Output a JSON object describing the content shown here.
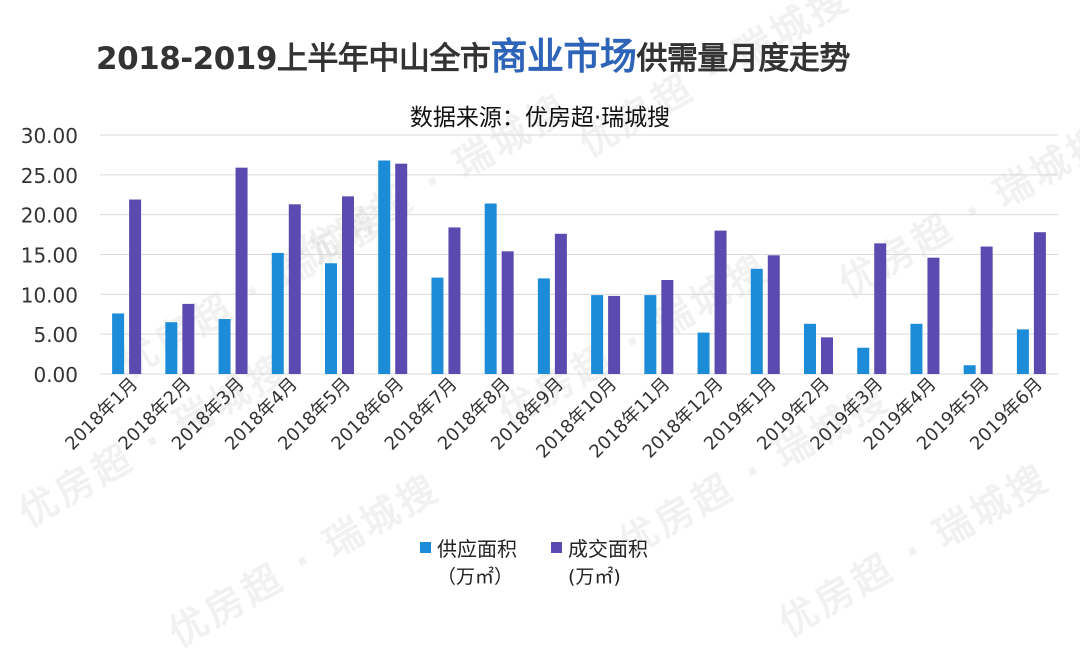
{
  "title": {
    "prefix": "2018-2019上半年中山全市",
    "highlight": "商业市场",
    "suffix": "供需量月度走势"
  },
  "subtitle": "数据来源：优房超·瑞城搜",
  "watermark_text": "优房超 · 瑞城搜",
  "chart_data": {
    "type": "bar",
    "categories": [
      "2018年1月",
      "2018年2月",
      "2018年3月",
      "2018年4月",
      "2018年5月",
      "2018年6月",
      "2018年7月",
      "2018年8月",
      "2018年9月",
      "2018年10月",
      "2018年11月",
      "2018年12月",
      "2019年1月",
      "2019年2月",
      "2019年3月",
      "2019年4月",
      "2019年5月",
      "2019年6月"
    ],
    "series": [
      {
        "name": "供应面积",
        "unit": "（万㎡）",
        "color": "#1C8CD8",
        "values": [
          7.6,
          6.5,
          6.9,
          15.2,
          13.9,
          26.8,
          12.1,
          21.4,
          12.0,
          9.9,
          9.9,
          5.2,
          13.2,
          6.3,
          3.3,
          6.3,
          1.1,
          5.6
        ]
      },
      {
        "name": "成交面积",
        "unit": "(万㎡)",
        "color": "#5B4BB0",
        "values": [
          21.9,
          8.8,
          25.9,
          21.3,
          22.3,
          26.4,
          18.4,
          15.4,
          17.6,
          9.8,
          11.8,
          18.0,
          14.9,
          4.6,
          16.4,
          14.6,
          16.0,
          17.8
        ]
      }
    ],
    "y_ticks": [
      "0.00",
      "5.00",
      "10.00",
      "15.00",
      "20.00",
      "25.00",
      "30.00"
    ],
    "ylim": [
      0,
      30
    ],
    "grid": true,
    "legend_position": "bottom"
  }
}
